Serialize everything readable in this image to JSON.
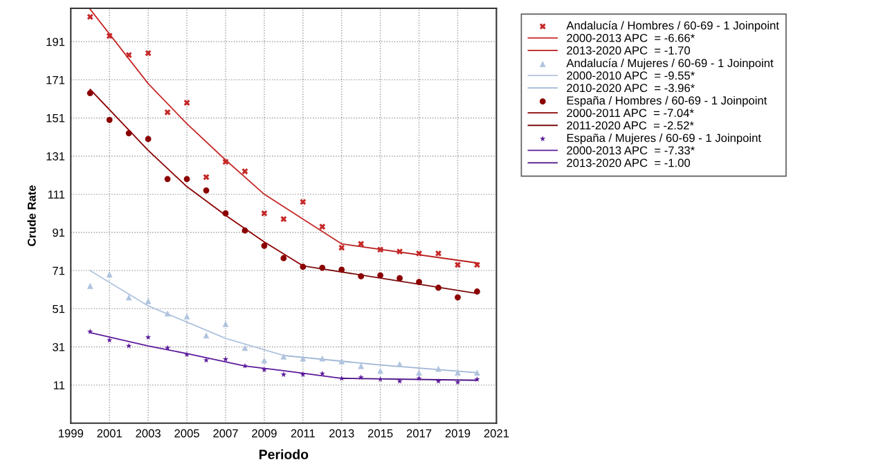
{
  "chart_data": {
    "type": "scatter",
    "xlabel": "Periodo",
    "ylabel": "Crude Rate",
    "xlim": [
      1999,
      2021
    ],
    "xticks": [
      1999,
      2001,
      2003,
      2005,
      2007,
      2009,
      2011,
      2013,
      2015,
      2017,
      2019,
      2021
    ],
    "ylim": [
      -9,
      208.5
    ],
    "yticks": [
      11,
      31,
      51,
      71,
      91,
      111,
      131,
      151,
      171,
      191
    ],
    "grid": true,
    "legend": "right",
    "x": [
      2000,
      2001,
      2002,
      2003,
      2004,
      2005,
      2006,
      2007,
      2008,
      2009,
      2010,
      2011,
      2012,
      2013,
      2014,
      2015,
      2016,
      2017,
      2018,
      2019,
      2020
    ],
    "series": [
      {
        "name": "Andalucía / Hombres / 60-69 - 1 Joinpoint",
        "marker": "cross",
        "color": "#c62828",
        "values": [
          204,
          194,
          184,
          185,
          154,
          159,
          120,
          128,
          123,
          101,
          98,
          107,
          94,
          83,
          85,
          82,
          81,
          80,
          80,
          74,
          74
        ]
      },
      {
        "name": "2000-2013 APC  = -6.66*",
        "type": "line",
        "color": "#c62828",
        "x": [
          2000,
          2003,
          2005,
          2007,
          2009,
          2011,
          2013
        ],
        "values": [
          208,
          169,
          148,
          129,
          111,
          98,
          85
        ]
      },
      {
        "name": "2013-2020 APC  = -1.70",
        "type": "line",
        "color": "#b71c1c",
        "x": [
          2013,
          2020
        ],
        "values": [
          85,
          75
        ]
      },
      {
        "name": "Andalucía / Mujeres / 60-69 - 1 Joinpoint",
        "marker": "triangle",
        "color": "#b0c4de",
        "values": [
          63,
          69,
          57,
          55,
          48.5,
          47,
          37,
          43,
          30.5,
          24,
          26,
          25,
          25,
          23.5,
          21,
          18.5,
          22,
          17.5,
          19.5,
          17.5,
          17.5
        ]
      },
      {
        "name": "2000-2010 APC  = -9.55*",
        "type": "line",
        "color": "#b0c4de",
        "x": [
          2000,
          2003,
          2005,
          2007,
          2010
        ],
        "values": [
          71,
          52.5,
          44,
          35.5,
          26.5
        ]
      },
      {
        "name": "2010-2020 APC  = -3.96*",
        "type": "line",
        "color": "#9fb6d6",
        "x": [
          2010,
          2015,
          2020
        ],
        "values": [
          26.5,
          21.5,
          17.5
        ]
      },
      {
        "name": "España / Hombres / 60-69 - 1 Joinpoint",
        "marker": "circle",
        "color": "#8b0000",
        "values": [
          164,
          150,
          143,
          140,
          119,
          119,
          113,
          101,
          92,
          84,
          77.5,
          73,
          72.5,
          71.5,
          68,
          68.5,
          67,
          65,
          62,
          57,
          60
        ]
      },
      {
        "name": "2000-2011 APC  = -7.04*",
        "type": "line",
        "color": "#8b0000",
        "x": [
          2000,
          2003,
          2005,
          2007,
          2009,
          2011
        ],
        "values": [
          166,
          134,
          115,
          100,
          86,
          73.5
        ]
      },
      {
        "name": "2011-2020 APC  = -2.52*",
        "type": "line",
        "color": "#7a0a0a",
        "x": [
          2011,
          2020
        ],
        "values": [
          73.5,
          59
        ]
      },
      {
        "name": "España / Mujeres / 60-69 - 1 Joinpoint",
        "marker": "star",
        "color": "#5b1a9b",
        "values": [
          39,
          34.5,
          31.5,
          36,
          30.5,
          27,
          24,
          24.5,
          21,
          19,
          16.5,
          16.5,
          17,
          14.5,
          15,
          14,
          13,
          14.5,
          13,
          12.5,
          14
        ]
      },
      {
        "name": "2000-2013 APC  = -7.33*",
        "type": "line",
        "color": "#5b1a9b",
        "x": [
          2000,
          2003,
          2005,
          2008,
          2010,
          2013
        ],
        "values": [
          38.5,
          31.5,
          27.5,
          21,
          18.5,
          14.5
        ]
      },
      {
        "name": "2013-2020 APC  = -1.00",
        "type": "line",
        "color": "#4a0f85",
        "x": [
          2013,
          2020
        ],
        "values": [
          14.5,
          13.5
        ]
      }
    ]
  }
}
